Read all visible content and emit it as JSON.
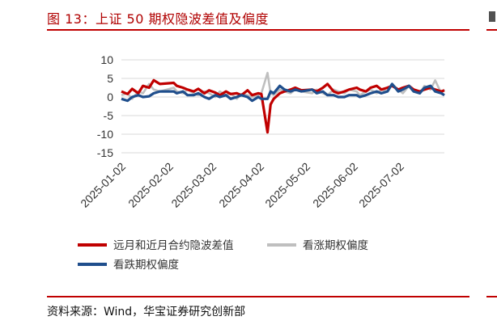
{
  "header": {
    "title": "图 13：上证 50 期权隐波差值及偏度"
  },
  "footer": {
    "source": "资料来源：Wind，华宝证券研究创新部"
  },
  "chart_data": {
    "type": "line",
    "title": "",
    "xlabel": "",
    "ylabel": "",
    "ylim": [
      -15,
      10
    ],
    "yticks": [
      "10",
      "5",
      "0",
      "-5",
      "-10",
      "-15"
    ],
    "xticks": [
      "2025-01-02",
      "2025-02-02",
      "2025-03-02",
      "2025-04-02",
      "2025-05-02",
      "2025-06-02",
      "2025-07-02"
    ],
    "grid": true,
    "legend_position": "bottom",
    "x": [
      "2025-01-02",
      "2025-01-06",
      "2025-01-09",
      "2025-01-13",
      "2025-01-16",
      "2025-01-20",
      "2025-01-23",
      "2025-01-27",
      "2025-02-05",
      "2025-02-07",
      "2025-02-11",
      "2025-02-14",
      "2025-02-18",
      "2025-02-21",
      "2025-02-25",
      "2025-02-28",
      "2025-03-04",
      "2025-03-07",
      "2025-03-11",
      "2025-03-14",
      "2025-03-18",
      "2025-03-21",
      "2025-03-25",
      "2025-03-28",
      "2025-04-01",
      "2025-04-03",
      "2025-04-07",
      "2025-04-09",
      "2025-04-11",
      "2025-04-15",
      "2025-04-18",
      "2025-04-22",
      "2025-04-25",
      "2025-04-29",
      "2025-05-06",
      "2025-05-09",
      "2025-05-13",
      "2025-05-16",
      "2025-05-20",
      "2025-05-23",
      "2025-05-27",
      "2025-05-30",
      "2025-06-04",
      "2025-06-06",
      "2025-06-10",
      "2025-06-13",
      "2025-06-17",
      "2025-06-20",
      "2025-06-24",
      "2025-06-27",
      "2025-07-01",
      "2025-07-04",
      "2025-07-08",
      "2025-07-11",
      "2025-07-15",
      "2025-07-18",
      "2025-07-22",
      "2025-07-25",
      "2025-07-29",
      "2025-07-31"
    ],
    "series": [
      {
        "name": "远月和近月合约隐波差值",
        "color": "#c00000",
        "values": [
          1.5,
          0.8,
          2.2,
          1.0,
          3.0,
          2.5,
          4.5,
          3.5,
          3.8,
          3.0,
          2.5,
          2.0,
          1.5,
          2.2,
          1.0,
          1.8,
          1.2,
          0.5,
          1.5,
          0.8,
          1.0,
          0.5,
          1.8,
          0.5,
          1.0,
          0.8,
          -9.5,
          -2.0,
          -0.5,
          1.0,
          1.5,
          2.0,
          2.5,
          1.8,
          2.0,
          1.5,
          2.5,
          3.5,
          1.5,
          1.0,
          1.5,
          2.0,
          2.5,
          2.0,
          1.5,
          2.5,
          3.0,
          2.0,
          2.5,
          3.0,
          2.0,
          2.5,
          3.0,
          2.0,
          1.5,
          2.0,
          2.5,
          2.0,
          1.5,
          1.8
        ]
      },
      {
        "name": "看涨期权偏度",
        "color": "#bfbfbf",
        "values": [
          0.5,
          1.0,
          -0.5,
          1.5,
          1.0,
          3.5,
          2.0,
          1.5,
          2.5,
          1.5,
          1.0,
          2.0,
          1.0,
          0.5,
          1.5,
          1.0,
          0.0,
          1.5,
          0.5,
          1.0,
          -0.5,
          0.8,
          0.5,
          0.0,
          0.5,
          1.0,
          6.5,
          1.0,
          0.5,
          2.0,
          1.5,
          1.0,
          2.0,
          1.5,
          1.0,
          2.0,
          1.0,
          0.5,
          2.0,
          1.5,
          1.0,
          2.0,
          1.5,
          0.5,
          1.5,
          2.0,
          1.0,
          2.0,
          1.5,
          3.5,
          2.0,
          1.0,
          3.0,
          2.0,
          1.0,
          3.0,
          2.0,
          4.5,
          1.0,
          2.0
        ]
      },
      {
        "name": "看跌期权偏度",
        "color": "#1f4e8c",
        "values": [
          -0.5,
          -1.0,
          0.0,
          0.5,
          0.0,
          0.2,
          1.0,
          1.5,
          1.5,
          1.0,
          1.5,
          0.5,
          0.5,
          1.0,
          0.0,
          -0.5,
          0.5,
          0.0,
          0.5,
          -0.5,
          0.0,
          0.5,
          0.0,
          -1.0,
          0.0,
          -0.5,
          -0.5,
          1.5,
          1.0,
          3.0,
          2.0,
          1.5,
          2.0,
          1.5,
          2.0,
          1.0,
          1.5,
          0.5,
          0.5,
          0.0,
          0.0,
          0.5,
          0.5,
          0.0,
          0.5,
          1.0,
          1.5,
          1.0,
          1.5,
          3.5,
          1.5,
          2.0,
          3.0,
          1.5,
          1.0,
          2.5,
          3.0,
          1.5,
          1.0,
          0.5
        ]
      }
    ]
  }
}
